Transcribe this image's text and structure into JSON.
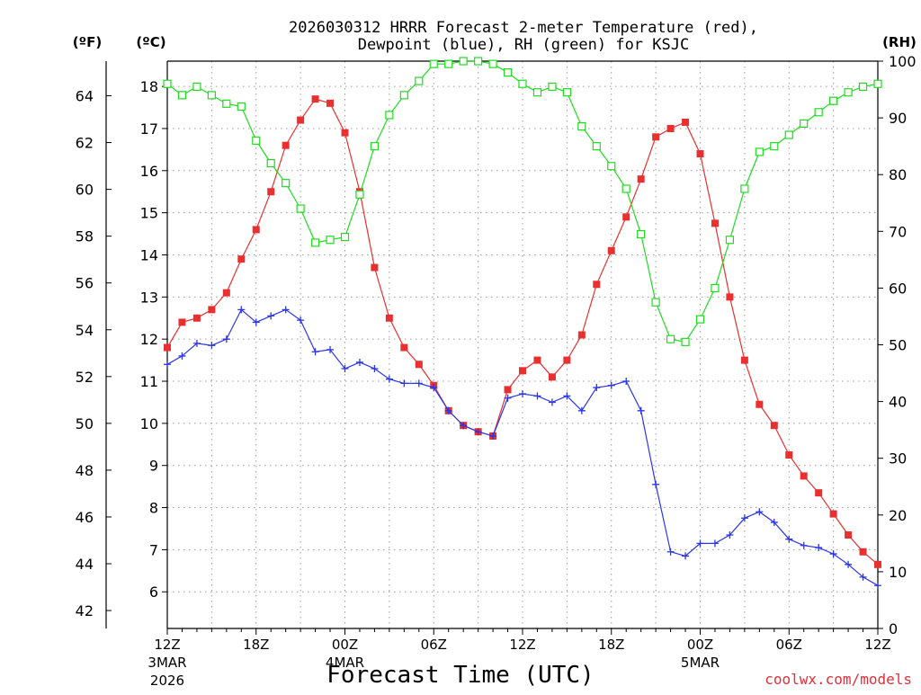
{
  "chart_data": {
    "type": "line",
    "title": "2026030312 HRRR Forecast 2-meter Temperature (red),",
    "title_line2": "Dewpoint (blue), RH (green) for KSJC",
    "xlabel": "Forecast Time (UTC)",
    "credit": "coolwx.com/models",
    "unit_labels": {
      "fahrenheit": "(ºF)",
      "celsius": "(ºC)",
      "rh": "(RH)"
    },
    "x_ticks": [
      {
        "hour": 0,
        "label": "12Z",
        "sub1": "3MAR",
        "sub2": "2026"
      },
      {
        "hour": 6,
        "label": "18Z",
        "sub1": "",
        "sub2": ""
      },
      {
        "hour": 12,
        "label": "00Z",
        "sub1": "4MAR",
        "sub2": ""
      },
      {
        "hour": 18,
        "label": "06Z",
        "sub1": "",
        "sub2": ""
      },
      {
        "hour": 24,
        "label": "12Z",
        "sub1": "",
        "sub2": ""
      },
      {
        "hour": 30,
        "label": "18Z",
        "sub1": "",
        "sub2": ""
      },
      {
        "hour": 36,
        "label": "00Z",
        "sub1": "5MAR",
        "sub2": ""
      },
      {
        "hour": 42,
        "label": "06Z",
        "sub1": "",
        "sub2": ""
      },
      {
        "hour": 48,
        "label": "12Z",
        "sub1": "",
        "sub2": ""
      }
    ],
    "x_range_hours": [
      0,
      48
    ],
    "y_left_celsius": {
      "range": [
        5.13,
        18.6
      ],
      "ticks": [
        6,
        7,
        8,
        9,
        10,
        11,
        12,
        13,
        14,
        15,
        16,
        17,
        18
      ]
    },
    "y_left_fahrenheit": {
      "ticks": [
        42,
        44,
        46,
        48,
        50,
        52,
        54,
        56,
        58,
        60,
        62,
        64
      ]
    },
    "y_right_rh": {
      "range": [
        0,
        100
      ],
      "ticks": [
        0,
        10,
        20,
        30,
        40,
        50,
        60,
        70,
        80,
        90,
        100
      ]
    },
    "grid": true,
    "series": [
      {
        "name": "Temperature",
        "axis": "celsius",
        "color": "#e83030",
        "marker": "filled-square",
        "values": [
          11.8,
          12.4,
          12.5,
          12.7,
          13.1,
          13.9,
          14.6,
          15.5,
          16.6,
          17.2,
          17.7,
          17.6,
          16.9,
          15.5,
          13.7,
          12.5,
          11.8,
          11.4,
          10.9,
          10.3,
          9.95,
          9.8,
          9.7,
          10.8,
          11.25,
          11.5,
          11.1,
          11.5,
          12.1,
          13.3,
          14.1,
          14.9,
          15.8,
          16.8,
          17.0,
          17.15,
          16.4,
          14.75,
          13.0,
          11.5,
          10.45,
          9.95,
          9.25,
          8.75,
          8.35,
          7.85,
          7.35,
          6.95,
          6.65
        ]
      },
      {
        "name": "Dewpoint",
        "axis": "celsius",
        "color": "#2a36e8",
        "marker": "plus",
        "values": [
          11.4,
          11.6,
          11.9,
          11.85,
          12.0,
          12.7,
          12.4,
          12.55,
          12.7,
          12.45,
          11.7,
          11.75,
          11.3,
          11.45,
          11.3,
          11.05,
          10.95,
          10.95,
          10.85,
          10.3,
          9.95,
          9.8,
          9.7,
          10.6,
          10.7,
          10.65,
          10.5,
          10.65,
          10.3,
          10.85,
          10.9,
          11.0,
          10.3,
          8.55,
          6.95,
          6.85,
          7.15,
          7.15,
          7.35,
          7.75,
          7.9,
          7.65,
          7.25,
          7.1,
          7.05,
          6.9,
          6.65,
          6.35,
          6.15
        ]
      },
      {
        "name": "RH",
        "axis": "rh",
        "color": "#1fdc1f",
        "marker": "open-square",
        "values": [
          96,
          94,
          95.5,
          94,
          92.5,
          92,
          86,
          82,
          78.5,
          74,
          68,
          68.5,
          69,
          76.5,
          85,
          90.5,
          94,
          96.5,
          99.5,
          99.5,
          100,
          100,
          99.5,
          98,
          96,
          94.5,
          95.5,
          94.5,
          88.5,
          85,
          81.5,
          77.5,
          69.5,
          57.5,
          51,
          50.5,
          54.5,
          60,
          68.5,
          77.5,
          84,
          85,
          87,
          89,
          91,
          93,
          94.5,
          95.5,
          96
        ]
      }
    ]
  }
}
